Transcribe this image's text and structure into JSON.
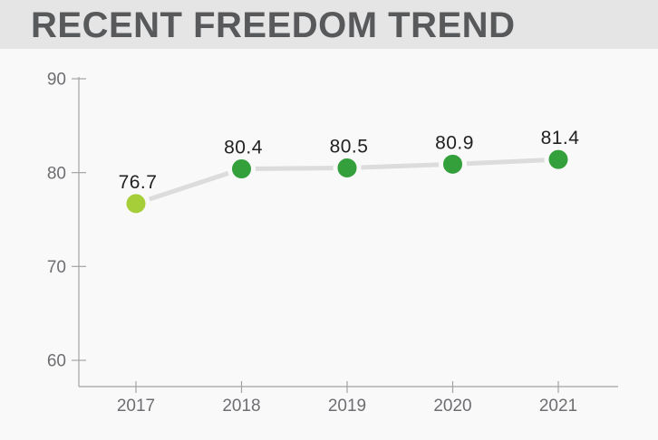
{
  "title": "RECENT FREEDOM TREND",
  "colors": {
    "header_bg": "#e5e5e5",
    "title_text": "#58595b",
    "chart_bg": "#f9f9f9",
    "axis": "#a3a3a3",
    "tick_label": "#6d6e71",
    "data_label": "#212121",
    "line": "#dcdcdc",
    "point_first": "#a6ce39",
    "point_rest": "#34a03c"
  },
  "chart_data": {
    "type": "line",
    "title": "RECENT FREEDOM TREND",
    "categories": [
      "2017",
      "2018",
      "2019",
      "2020",
      "2021"
    ],
    "values": [
      76.7,
      80.4,
      80.5,
      80.9,
      81.4
    ],
    "data_labels": [
      "76.7",
      "80.4",
      "80.5",
      "80.9",
      "81.4"
    ],
    "point_colors": [
      "#a6ce39",
      "#34a03c",
      "#34a03c",
      "#34a03c",
      "#34a03c"
    ],
    "xlabel": "",
    "ylabel": "",
    "ylim": [
      60,
      90
    ],
    "yticks": [
      90,
      80,
      70,
      60
    ],
    "grid": false,
    "legend": false
  }
}
